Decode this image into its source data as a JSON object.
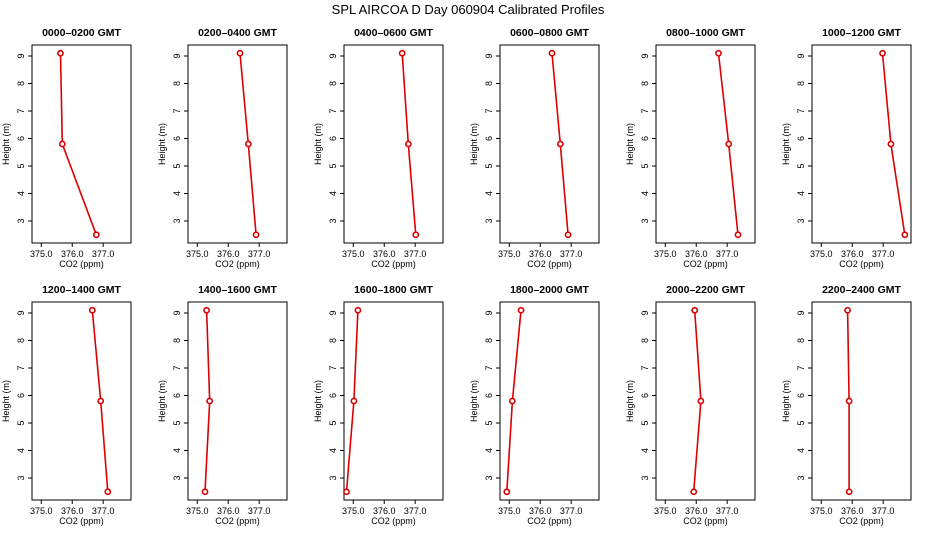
{
  "figure": {
    "title": "SPL AIRCOA D  Day 060904  Calibrated Profiles"
  },
  "colors": {
    "series": "#dd0000",
    "axis": "#000000",
    "background": "#ffffff"
  },
  "chart_data": [
    {
      "type": "line",
      "title": "0000–0200 GMT",
      "xlabel": "CO2 (ppm)",
      "ylabel": "Height (m)",
      "xlim": [
        374.7,
        377.9
      ],
      "ylim": [
        2.2,
        9.4
      ],
      "xticks": [
        "375.0",
        "376.0",
        "377.0"
      ],
      "yticks": [
        "3",
        "4",
        "5",
        "6",
        "7",
        "8",
        "9"
      ],
      "series": [
        {
          "x": [
            376.78,
            375.68,
            375.62
          ],
          "y": [
            2.5,
            5.8,
            9.1
          ]
        }
      ]
    },
    {
      "type": "line",
      "title": "0200–0400 GMT",
      "xlabel": "CO2 (ppm)",
      "ylabel": "Height (m)",
      "xlim": [
        374.7,
        377.9
      ],
      "ylim": [
        2.2,
        9.4
      ],
      "xticks": [
        "375.0",
        "376.0",
        "377.0"
      ],
      "yticks": [
        "3",
        "4",
        "5",
        "6",
        "7",
        "8",
        "9"
      ],
      "series": [
        {
          "x": [
            376.9,
            376.65,
            376.38
          ],
          "y": [
            2.5,
            5.8,
            9.1
          ]
        }
      ]
    },
    {
      "type": "line",
      "title": "0400–0600 GMT",
      "xlabel": "CO2 (ppm)",
      "ylabel": "Height (m)",
      "xlim": [
        374.7,
        377.9
      ],
      "ylim": [
        2.2,
        9.4
      ],
      "xticks": [
        "375.0",
        "376.0",
        "377.0"
      ],
      "yticks": [
        "3",
        "4",
        "5",
        "6",
        "7",
        "8",
        "9"
      ],
      "series": [
        {
          "x": [
            377.02,
            376.78,
            376.58
          ],
          "y": [
            2.5,
            5.8,
            9.1
          ]
        }
      ]
    },
    {
      "type": "line",
      "title": "0600–0800 GMT",
      "xlabel": "CO2 (ppm)",
      "ylabel": "Height (m)",
      "xlim": [
        374.7,
        377.9
      ],
      "ylim": [
        2.2,
        9.4
      ],
      "xticks": [
        "375.0",
        "376.0",
        "377.0"
      ],
      "yticks": [
        "3",
        "4",
        "5",
        "6",
        "7",
        "8",
        "9"
      ],
      "series": [
        {
          "x": [
            376.9,
            376.65,
            376.38
          ],
          "y": [
            2.5,
            5.8,
            9.1
          ]
        }
      ]
    },
    {
      "type": "line",
      "title": "0800–1000 GMT",
      "xlabel": "CO2 (ppm)",
      "ylabel": "Height (m)",
      "xlim": [
        374.7,
        377.9
      ],
      "ylim": [
        2.2,
        9.4
      ],
      "xticks": [
        "375.0",
        "376.0",
        "377.0"
      ],
      "yticks": [
        "3",
        "4",
        "5",
        "6",
        "7",
        "8",
        "9"
      ],
      "series": [
        {
          "x": [
            377.35,
            377.05,
            376.72
          ],
          "y": [
            2.5,
            5.8,
            9.1
          ]
        }
      ]
    },
    {
      "type": "line",
      "title": "1000–1200 GMT",
      "xlabel": "CO2 (ppm)",
      "ylabel": "Height (m)",
      "xlim": [
        374.7,
        377.9
      ],
      "ylim": [
        2.2,
        9.4
      ],
      "xticks": [
        "375.0",
        "376.0",
        "377.0"
      ],
      "yticks": [
        "3",
        "4",
        "5",
        "6",
        "7",
        "8",
        "9"
      ],
      "series": [
        {
          "x": [
            377.7,
            377.25,
            376.98
          ],
          "y": [
            2.5,
            5.8,
            9.1
          ]
        }
      ]
    },
    {
      "type": "line",
      "title": "1200–1400 GMT",
      "xlabel": "CO2 (ppm)",
      "ylabel": "Height (m)",
      "xlim": [
        374.7,
        377.9
      ],
      "ylim": [
        2.2,
        9.4
      ],
      "xticks": [
        "375.0",
        "376.0",
        "377.0"
      ],
      "yticks": [
        "3",
        "4",
        "5",
        "6",
        "7",
        "8",
        "9"
      ],
      "series": [
        {
          "x": [
            377.15,
            376.92,
            376.65
          ],
          "y": [
            2.5,
            5.8,
            9.1
          ]
        }
      ]
    },
    {
      "type": "line",
      "title": "1400–1600 GMT",
      "xlabel": "CO2 (ppm)",
      "ylabel": "Height (m)",
      "xlim": [
        374.7,
        377.9
      ],
      "ylim": [
        2.2,
        9.4
      ],
      "xticks": [
        "375.0",
        "376.0",
        "377.0"
      ],
      "yticks": [
        "3",
        "4",
        "5",
        "6",
        "7",
        "8",
        "9"
      ],
      "series": [
        {
          "x": [
            375.25,
            375.4,
            375.3
          ],
          "y": [
            2.5,
            5.8,
            9.1
          ]
        }
      ]
    },
    {
      "type": "line",
      "title": "1600–1800 GMT",
      "xlabel": "CO2 (ppm)",
      "ylabel": "Height (m)",
      "xlim": [
        374.7,
        377.9
      ],
      "ylim": [
        2.2,
        9.4
      ],
      "xticks": [
        "375.0",
        "376.0",
        "377.0"
      ],
      "yticks": [
        "3",
        "4",
        "5",
        "6",
        "7",
        "8",
        "9"
      ],
      "series": [
        {
          "x": [
            374.78,
            375.02,
            375.15
          ],
          "y": [
            2.5,
            5.8,
            9.1
          ]
        }
      ]
    },
    {
      "type": "line",
      "title": "1800–2000 GMT",
      "xlabel": "CO2 (ppm)",
      "ylabel": "Height (m)",
      "xlim": [
        374.7,
        377.9
      ],
      "ylim": [
        2.2,
        9.4
      ],
      "xticks": [
        "375.0",
        "376.0",
        "377.0"
      ],
      "yticks": [
        "3",
        "4",
        "5",
        "6",
        "7",
        "8",
        "9"
      ],
      "series": [
        {
          "x": [
            374.92,
            375.1,
            375.38
          ],
          "y": [
            2.5,
            5.8,
            9.1
          ]
        }
      ]
    },
    {
      "type": "line",
      "title": "2000–2200 GMT",
      "xlabel": "CO2 (ppm)",
      "ylabel": "Height (m)",
      "xlim": [
        374.7,
        377.9
      ],
      "ylim": [
        2.2,
        9.4
      ],
      "xticks": [
        "375.0",
        "376.0",
        "377.0"
      ],
      "yticks": [
        "3",
        "4",
        "5",
        "6",
        "7",
        "8",
        "9"
      ],
      "series": [
        {
          "x": [
            375.92,
            376.15,
            375.95
          ],
          "y": [
            2.5,
            5.8,
            9.1
          ]
        }
      ]
    },
    {
      "type": "line",
      "title": "2200–2400 GMT",
      "xlabel": "CO2 (ppm)",
      "ylabel": "Height (m)",
      "xlim": [
        374.7,
        377.9
      ],
      "ylim": [
        2.2,
        9.4
      ],
      "xticks": [
        "375.0",
        "376.0",
        "377.0"
      ],
      "yticks": [
        "3",
        "4",
        "5",
        "6",
        "7",
        "8",
        "9"
      ],
      "series": [
        {
          "x": [
            375.9,
            375.9,
            375.85
          ],
          "y": [
            2.5,
            5.8,
            9.1
          ]
        }
      ]
    }
  ]
}
